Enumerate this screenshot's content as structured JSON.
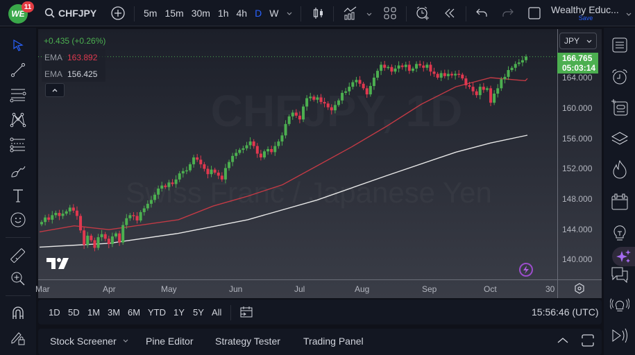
{
  "header": {
    "logo_text": "WE",
    "notification_count": "11",
    "symbol": "CHFJPY",
    "timeframes": [
      "5m",
      "15m",
      "30m",
      "1h",
      "4h",
      "D",
      "W"
    ],
    "active_timeframe": "D",
    "layout_name": "Wealthy Educ...",
    "save_label": "Save",
    "icons": [
      "add-symbol-icon",
      "candles-icon",
      "indicators-icon",
      "layouts-icon",
      "alert-icon",
      "replay-icon",
      "undo-icon",
      "redo-icon",
      "fullscreen-icon"
    ]
  },
  "legend": {
    "change": "+0.435 (+0.26%)",
    "ema1_label": "EMA",
    "ema1_value": "163.892",
    "ema2_label": "EMA",
    "ema2_value": "156.425",
    "collapse_icon": "chevron-up-icon"
  },
  "watermark": {
    "symbol": "CHFJPY, 1D",
    "description": "Swiss Franc / Japanese Yen"
  },
  "price_axis": {
    "currency": "JPY",
    "current_price": "166.765",
    "countdown": "05:03:14",
    "ticks": [
      "164.000",
      "160.000",
      "156.000",
      "152.000",
      "148.000",
      "144.000",
      "140.000"
    ]
  },
  "time_axis": {
    "ticks": [
      "Mar",
      "Apr",
      "May",
      "Jun",
      "Jul",
      "Aug",
      "Sep",
      "Oct",
      "30"
    ]
  },
  "range_bar": {
    "ranges": [
      "1D",
      "5D",
      "1M",
      "3M",
      "6M",
      "YTD",
      "1Y",
      "5Y",
      "All"
    ],
    "clock": "15:56:46 (UTC)"
  },
  "bottom_panel": {
    "tabs": [
      "Stock Screener",
      "Pine Editor",
      "Strategy Tester",
      "Trading Panel"
    ]
  },
  "left_toolbar": [
    "cursor-icon",
    "trend-line-icon",
    "horizontal-lines-icon",
    "pattern-icon",
    "fib-icon",
    "brush-icon",
    "text-icon",
    "emoji-icon",
    "ruler-icon",
    "zoom-in-icon",
    "magnet-icon",
    "lock-drawings-icon"
  ],
  "right_toolbar": [
    "watchlist-icon",
    "alerts-icon",
    "add-list-icon",
    "layers-icon",
    "hotlist-icon",
    "calendar-icon",
    "ideas-icon",
    "ai-sparkle-icon",
    "chat-icon",
    "streams-icon",
    "news-icon"
  ],
  "colors": {
    "up": "#4caf50",
    "down": "#e0384f",
    "ema_fast": "#c23a45",
    "ema_slow": "#e8e8e8",
    "accent": "#2962ff",
    "price_tag": "#4caf50"
  },
  "chart_data": {
    "type": "candlestick",
    "symbol": "CHFJPY",
    "interval": "1D",
    "ylim": [
      138.5,
      168
    ],
    "x_ticks": [
      "Mar",
      "Apr",
      "May",
      "Jun",
      "Jul",
      "Aug",
      "Sep",
      "Oct",
      "30"
    ],
    "y_ticks": [
      140,
      144,
      148,
      152,
      156,
      160,
      164
    ],
    "last_price": 166.765,
    "ema_fast_last": 163.892,
    "ema_slow_last": 156.425,
    "closes": [
      145.0,
      145.6,
      145.3,
      145.9,
      146.2,
      145.8,
      146.1,
      146.4,
      146.9,
      146.5,
      145.8,
      143.9,
      142.0,
      143.2,
      142.6,
      141.6,
      143.0,
      143.4,
      142.8,
      142.1,
      143.1,
      143.5,
      142.3,
      144.6,
      145.5,
      145.9,
      145.8,
      145.2,
      146.3,
      146.8,
      147.4,
      147.9,
      148.6,
      149.4,
      149.8,
      149.6,
      150.2,
      150.0,
      150.6,
      151.4,
      151.7,
      151.8,
      152.6,
      153.5,
      153.2,
      152.6,
      152.0,
      151.3,
      151.9,
      151.5,
      151.1,
      150.6,
      152.1,
      152.9,
      153.7,
      154.1,
      154.5,
      154.7,
      155.1,
      155.6,
      155.0,
      154.0,
      153.5,
      154.3,
      154.6,
      154.2,
      155.0,
      155.6,
      156.4,
      157.9,
      158.9,
      159.4,
      159.0,
      158.5,
      160.2,
      161.3,
      161.5,
      161.1,
      161.4,
      160.8,
      160.6,
      160.1,
      159.7,
      160.4,
      161.0,
      162.0,
      162.2,
      162.8,
      163.4,
      163.7,
      163.2,
      162.6,
      161.8,
      162.9,
      164.0,
      164.9,
      165.7,
      165.3,
      165.4,
      164.8,
      165.2,
      165.6,
      165.4,
      165.7,
      164.9,
      165.2,
      165.8,
      165.6,
      165.3,
      165.7,
      164.8,
      164.5,
      164.0,
      164.6,
      164.2,
      164.5,
      164.3,
      164.5,
      164.4,
      163.9,
      163.0,
      162.8,
      162.2,
      161.7,
      162.8,
      162.4,
      162.6,
      160.7,
      161.9,
      162.6,
      163.8,
      164.1,
      165.0,
      165.3,
      165.8,
      166.0,
      166.3,
      166.77
    ],
    "ema_fast_points": [
      [
        0,
        143.7
      ],
      [
        50,
        144.5
      ],
      [
        100,
        144.0
      ],
      [
        200,
        145.3
      ],
      [
        250,
        147.1
      ],
      [
        300,
        148.4
      ],
      [
        350,
        149.9
      ],
      [
        400,
        152.4
      ],
      [
        450,
        154.9
      ],
      [
        500,
        157.6
      ],
      [
        550,
        160.5
      ],
      [
        600,
        162.8
      ],
      [
        650,
        164.0
      ],
      [
        700,
        163.6
      ],
      [
        703,
        163.89
      ]
    ],
    "ema_slow_points": [
      [
        0,
        141.7
      ],
      [
        100,
        142.2
      ],
      [
        200,
        143.5
      ],
      [
        300,
        145.3
      ],
      [
        400,
        147.9
      ],
      [
        500,
        151.1
      ],
      [
        600,
        154.2
      ],
      [
        650,
        155.4
      ],
      [
        703,
        156.43
      ]
    ]
  }
}
